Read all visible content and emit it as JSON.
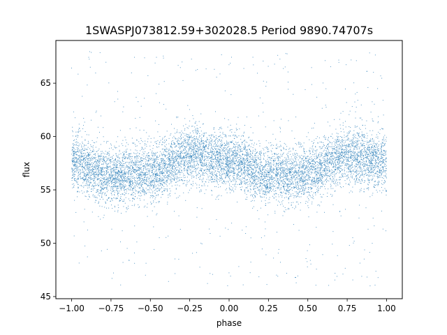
{
  "chart_data": {
    "type": "scatter",
    "title": "1SWASPJ073812.59+302028.5 Period 9890.74707s",
    "xlabel": "phase",
    "ylabel": "flux",
    "xlim": [
      -1.1,
      1.1
    ],
    "ylim": [
      44.8,
      69.0
    ],
    "xticks": [
      -1.0,
      -0.75,
      -0.5,
      -0.25,
      0.0,
      0.25,
      0.5,
      0.75,
      1.0
    ],
    "xtick_labels": [
      "−1.00",
      "−0.75",
      "−0.50",
      "−0.25",
      "0.00",
      "0.25",
      "0.50",
      "0.75",
      "1.00"
    ],
    "yticks": [
      45,
      50,
      55,
      60,
      65
    ],
    "ytick_labels": [
      "45",
      "50",
      "55",
      "60",
      "65"
    ],
    "grid": false,
    "legend": "none",
    "marker_color": "#1f77b4",
    "phase_range": [
      -1.0,
      1.0
    ],
    "flux_range": [
      46.0,
      68.0
    ],
    "curve": {
      "description_values": "approximate sinusoidal median flux vs phase",
      "phase": [
        -1.0,
        -0.75,
        -0.5,
        -0.25,
        0.0,
        0.25,
        0.5,
        0.75,
        1.0
      ],
      "median_flux": [
        57.3,
        56.0,
        56.3,
        58.0,
        57.4,
        56.0,
        56.3,
        58.0,
        57.3
      ],
      "band_half_width": 2.6
    },
    "outlier_fraction": 0.05
  }
}
